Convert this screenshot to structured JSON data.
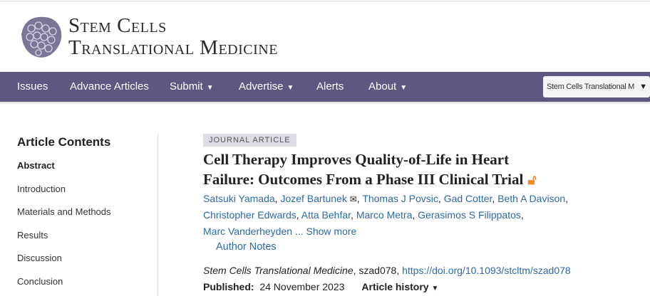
{
  "journal": {
    "logo_line1": "Stem Cells",
    "logo_line2": "Translational Medicine"
  },
  "nav": {
    "items": [
      {
        "label": "Issues",
        "dropdown": false
      },
      {
        "label": "Advance Articles",
        "dropdown": false
      },
      {
        "label": "Submit",
        "dropdown": true
      },
      {
        "label": "Advertise",
        "dropdown": true
      },
      {
        "label": "Alerts",
        "dropdown": false
      },
      {
        "label": "About",
        "dropdown": true
      }
    ],
    "caret": "▼",
    "journal_select": "Stem Cells Translational M",
    "select_arrow": "▼"
  },
  "sidebar": {
    "title": "Article Contents",
    "items": [
      "Abstract",
      "Introduction",
      "Materials and Methods",
      "Results",
      "Discussion",
      "Conclusion"
    ]
  },
  "article": {
    "type": "JOURNAL ARTICLE",
    "title": "Cell Therapy Improves Quality-of-Life in Heart Failure: Outcomes From a Phase III Clinical Trial",
    "authors": [
      "Satsuki Yamada",
      "Jozef Bartunek",
      "Thomas J Povsic",
      "Gad Cotter",
      "Beth A Davison",
      "Christopher Edwards",
      "Atta Behfar",
      "Marco Metra",
      "Gerasimos S Filippatos",
      "Marc Vanderheyden"
    ],
    "ellipsis": "...",
    "show_more": "Show more",
    "author_notes": "Author Notes",
    "journal_name": "Stem Cells Translational Medicine",
    "article_id": ", szad078, ",
    "doi": "https://doi.org/10.1093/stcltm/szad078",
    "published_label": "Published:",
    "published_date": "24 November 2023",
    "history": "Article history"
  },
  "colors": {
    "nav": "#5d5882",
    "link": "#2c6aa8",
    "open_access": "#f18a2b"
  }
}
